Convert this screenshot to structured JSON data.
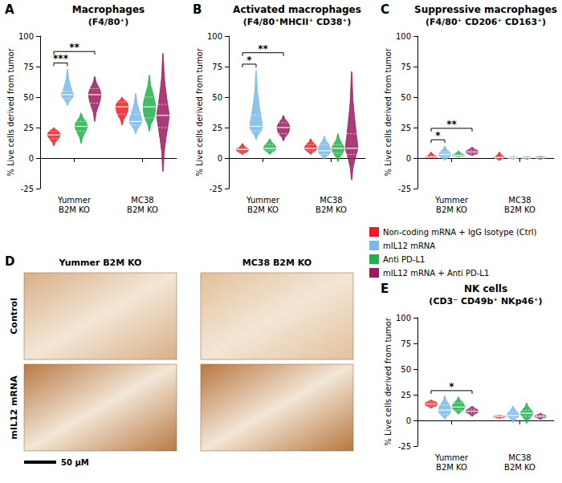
{
  "legend": "right",
  "chart_data": [
    {
      "letter": "A",
      "type": "violin",
      "title": "Macrophages",
      "subtitle": "(F4/80⁺)",
      "y_label": "% Live cells derived from tumor",
      "categories": [
        "Yummer B2M KO",
        "MC38 B2M KO"
      ],
      "ylim": [
        -25,
        100
      ],
      "yticks": [
        -25,
        0,
        25,
        50,
        75,
        100
      ],
      "grid": false,
      "series": [
        {
          "name": "Non-coding mRNA + IgG Isotype (Ctrl)",
          "color": "#ee1c25",
          "values": [
            {
              "min": 10,
              "q1": 16,
              "median": 19,
              "q3": 22,
              "max": 25
            },
            {
              "min": 27,
              "q1": 36,
              "median": 42,
              "q3": 46,
              "max": 50
            }
          ]
        },
        {
          "name": "mIL12 mRNA",
          "color": "#7ab8e8",
          "values": [
            {
              "min": 43,
              "q1": 49,
              "median": 52,
              "q3": 55,
              "max": 73
            },
            {
              "min": 20,
              "q1": 27,
              "median": 30,
              "q3": 36,
              "max": 53
            }
          ]
        },
        {
          "name": "Anti PD-L1",
          "color": "#21b04b",
          "values": [
            {
              "min": 12,
              "q1": 22,
              "median": 26,
              "q3": 30,
              "max": 37
            },
            {
              "min": 22,
              "q1": 33,
              "median": 42,
              "q3": 50,
              "max": 68
            }
          ]
        },
        {
          "name": "mIL12 mRNA + Anti PD-L1",
          "color": "#9b1b5f",
          "values": [
            {
              "min": 30,
              "q1": 45,
              "median": 52,
              "q3": 57,
              "max": 67
            },
            {
              "min": -11,
              "q1": 25,
              "median": 35,
              "q3": 44,
              "max": 86
            }
          ]
        }
      ],
      "significance": [
        {
          "category": "Yummer B2M KO",
          "from": "Non-coding mRNA + IgG Isotype (Ctrl)",
          "to": "mIL12 mRNA",
          "label": "***"
        },
        {
          "category": "Yummer B2M KO",
          "from": "Non-coding mRNA + IgG Isotype (Ctrl)",
          "to": "mIL12 mRNA + Anti PD-L1",
          "label": "**"
        }
      ]
    },
    {
      "letter": "B",
      "type": "violin",
      "title": "Activated macrophages",
      "subtitle": "(F4/80⁺MHCII⁺ CD38⁺)",
      "y_label": "% Live cells derived from tumor",
      "categories": [
        "Yummer B2M KO",
        "MC38 B2M KO"
      ],
      "ylim": [
        -25,
        100
      ],
      "yticks": [
        -25,
        0,
        25,
        50,
        75,
        100
      ],
      "grid": false,
      "series": [
        {
          "name": "Non-coding mRNA + IgG Isotype (Ctrl)",
          "color": "#ee1c25",
          "values": [
            {
              "min": 3,
              "q1": 5,
              "median": 7,
              "q3": 8,
              "max": 12
            },
            {
              "min": 3,
              "q1": 6,
              "median": 8,
              "q3": 11,
              "max": 16
            }
          ]
        },
        {
          "name": "mIL12 mRNA",
          "color": "#7ab8e8",
          "values": [
            {
              "min": 15,
              "q1": 22,
              "median": 26,
              "q3": 35,
              "max": 72
            },
            {
              "min": -1,
              "q1": 3,
              "median": 6,
              "q3": 11,
              "max": 18
            }
          ]
        },
        {
          "name": "Anti PD-L1",
          "color": "#21b04b",
          "values": [
            {
              "min": 3,
              "q1": 6,
              "median": 8,
              "q3": 11,
              "max": 16
            },
            {
              "min": -3,
              "q1": 4,
              "median": 8,
              "q3": 11,
              "max": 20
            }
          ]
        },
        {
          "name": "mIL12 mRNA + Anti PD-L1",
          "color": "#9b1b5f",
          "values": [
            {
              "min": 14,
              "q1": 20,
              "median": 25,
              "q3": 29,
              "max": 35
            },
            {
              "min": -18,
              "q1": 3,
              "median": 8,
              "q3": 20,
              "max": 71
            }
          ]
        }
      ],
      "significance": [
        {
          "category": "Yummer B2M KO",
          "from": "Non-coding mRNA + IgG Isotype (Ctrl)",
          "to": "mIL12 mRNA",
          "label": "*"
        },
        {
          "category": "Yummer B2M KO",
          "from": "Non-coding mRNA + IgG Isotype (Ctrl)",
          "to": "mIL12 mRNA + Anti PD-L1",
          "label": "**"
        }
      ]
    },
    {
      "letter": "C",
      "type": "violin",
      "title": "Suppressive macrophages",
      "subtitle": "(F4/80⁺ CD206⁺ CD163⁺)",
      "y_label": "% Live cells derived from tumor",
      "categories": [
        "Yummer B2M KO",
        "MC38 B2M KO"
      ],
      "ylim": [
        -25,
        100
      ],
      "yticks": [
        -25,
        0,
        25,
        50,
        75,
        100
      ],
      "grid": false,
      "series": [
        {
          "name": "Non-coding mRNA + IgG Isotype (Ctrl)",
          "color": "#ee1c25",
          "values": [
            {
              "min": 0,
              "q1": 0.5,
              "median": 1,
              "q3": 1.5,
              "max": 5
            },
            {
              "min": -2,
              "q1": 0,
              "median": 0.5,
              "q3": 1,
              "max": 5
            }
          ]
        },
        {
          "name": "mIL12 mRNA",
          "color": "#7ab8e8",
          "values": [
            {
              "min": -2,
              "q1": 1,
              "median": 3,
              "q3": 5,
              "max": 10
            },
            {
              "min": -1,
              "q1": 0,
              "median": 0.3,
              "q3": 0.7,
              "max": 1.5
            }
          ]
        },
        {
          "name": "Anti PD-L1",
          "color": "#21b04b",
          "values": [
            {
              "min": 1,
              "q1": 1.5,
              "median": 2,
              "q3": 3,
              "max": 6
            },
            {
              "min": -1,
              "q1": 0,
              "median": 0.3,
              "q3": 0.6,
              "max": 1
            }
          ]
        },
        {
          "name": "mIL12 mRNA + Anti PD-L1",
          "color": "#9b1b5f",
          "values": [
            {
              "min": 2,
              "q1": 3.5,
              "median": 5,
              "q3": 6.5,
              "max": 9
            },
            {
              "min": -1,
              "q1": 0,
              "median": 0.3,
              "q3": 0.6,
              "max": 1.2
            }
          ]
        }
      ],
      "significance": [
        {
          "category": "Yummer B2M KO",
          "from": "Non-coding mRNA + IgG Isotype (Ctrl)",
          "to": "mIL12 mRNA",
          "label": "*"
        },
        {
          "category": "Yummer B2M KO",
          "from": "Non-coding mRNA + IgG Isotype (Ctrl)",
          "to": "mIL12 mRNA + Anti PD-L1",
          "label": "**"
        }
      ]
    },
    {
      "letter": "E",
      "type": "violin",
      "title": "NK cells",
      "subtitle": "(CD3⁻ CD49b⁺ NKp46⁺)",
      "y_label": "% Live cells derived from tumor",
      "categories": [
        "Yummer B2M KO",
        "MC38 B2M KO"
      ],
      "ylim": [
        -25,
        100
      ],
      "yticks": [
        -25,
        0,
        25,
        50,
        75,
        100
      ],
      "grid": false,
      "series": [
        {
          "name": "Non-coding mRNA + IgG Isotype (Ctrl)",
          "color": "#ee1c25",
          "values": [
            {
              "min": 12,
              "q1": 14,
              "median": 16,
              "q3": 18,
              "max": 20
            },
            {
              "min": 2,
              "q1": 3,
              "median": 4,
              "q3": 4.5,
              "max": 5
            }
          ]
        },
        {
          "name": "mIL12 mRNA",
          "color": "#7ab8e8",
          "values": [
            {
              "min": 1,
              "q1": 6,
              "median": 10,
              "q3": 15,
              "max": 24
            },
            {
              "min": -2,
              "q1": 3,
              "median": 5,
              "q3": 8,
              "max": 14
            }
          ]
        },
        {
          "name": "Anti PD-L1",
          "color": "#21b04b",
          "values": [
            {
              "min": 6,
              "q1": 10,
              "median": 13,
              "q3": 17,
              "max": 23
            },
            {
              "min": -3,
              "q1": 4,
              "median": 7,
              "q3": 10,
              "max": 17
            }
          ]
        },
        {
          "name": "mIL12 mRNA + Anti PD-L1",
          "color": "#9b1b5f",
          "values": [
            {
              "min": 4,
              "q1": 7,
              "median": 9,
              "q3": 11,
              "max": 14
            },
            {
              "min": 1,
              "q1": 3,
              "median": 4,
              "q3": 5,
              "max": 7
            }
          ]
        }
      ],
      "significance": [
        {
          "category": "Yummer B2M KO",
          "from": "Non-coding mRNA + IgG Isotype (Ctrl)",
          "to": "mIL12 mRNA + Anti PD-L1",
          "label": "*"
        }
      ]
    }
  ],
  "image_panel": {
    "letter": "D",
    "columns": [
      "Yummer B2M KO",
      "MC38 B2M KO"
    ],
    "rows": [
      "Control",
      "mIL12 mRNA"
    ],
    "scale_bar": "50 μM"
  }
}
